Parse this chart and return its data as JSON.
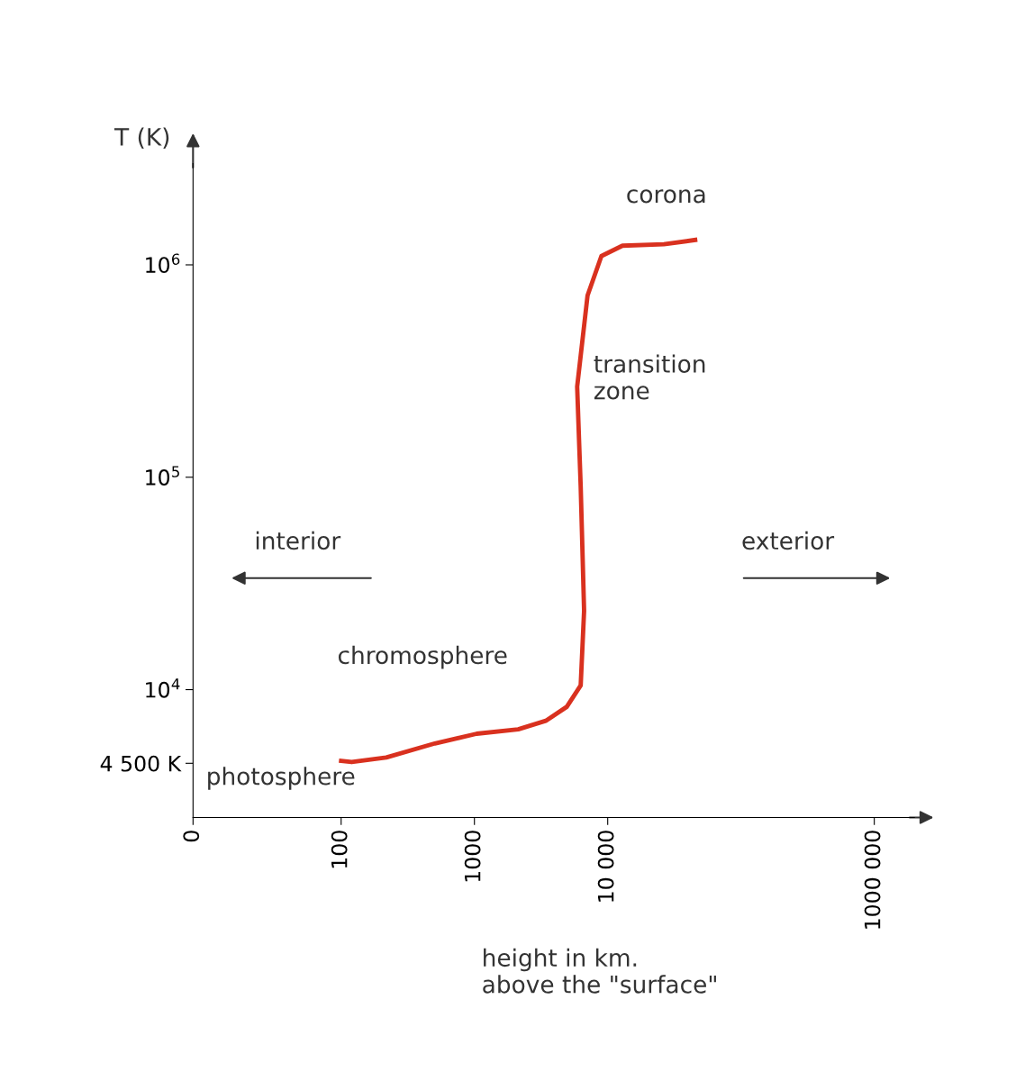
{
  "chart_data": {
    "type": "line",
    "log": "xy",
    "xlabel": "height in km.\nabove the \"surface\"",
    "ylabel": "T (K)",
    "xlim": [
      0,
      2000000
    ],
    "ylim": [
      2500,
      3000000
    ],
    "xticks": [
      0,
      100,
      1000,
      {
        "value": 10000,
        "label": "10 000"
      },
      {
        "value": 1000000,
        "label": "1000 000"
      }
    ],
    "yticks": [
      {
        "value": 4500,
        "label": "4 500 K"
      },
      {
        "value": 10000,
        "label": "10$^{4}$"
      },
      {
        "value": 100000,
        "label": "10$^{5}$"
      },
      {
        "value": 1000000,
        "label": "10$^{6}$"
      }
    ],
    "series": [
      {
        "color": "#d9311f",
        "x": [
          100,
          120,
          218,
          505,
          1040,
          2130,
          3430,
          4930,
          6270,
          6650,
          6270,
          5900,
          7060,
          8970,
          12900,
          26400,
          45300
        ],
        "values": [
          4620,
          4560,
          4790,
          5580,
          6200,
          6500,
          7130,
          8300,
          10470,
          23500,
          90600,
          267000,
          717000,
          1100000,
          1230000,
          1250000,
          1310000
        ]
      }
    ],
    "annotations": [
      "corona",
      "transition\nzone",
      "chromosphere",
      "photosphere",
      "interior",
      "exterior"
    ]
  }
}
